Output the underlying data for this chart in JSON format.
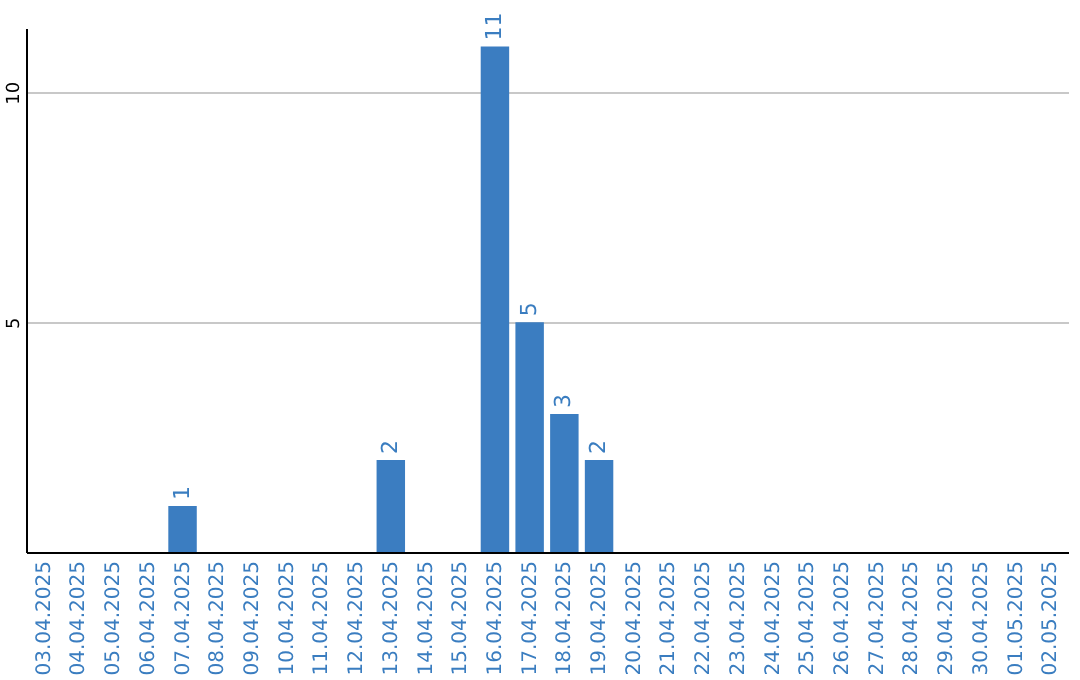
{
  "chart_data": {
    "type": "bar",
    "categories": [
      "03.04.2025",
      "04.04.2025",
      "05.04.2025",
      "06.04.2025",
      "07.04.2025",
      "08.04.2025",
      "09.04.2025",
      "10.04.2025",
      "11.04.2025",
      "12.04.2025",
      "13.04.2025",
      "14.04.2025",
      "15.04.2025",
      "16.04.2025",
      "17.04.2025",
      "18.04.2025",
      "19.04.2025",
      "20.04.2025",
      "21.04.2025",
      "22.04.2025",
      "23.04.2025",
      "24.04.2025",
      "25.04.2025",
      "26.04.2025",
      "27.04.2025",
      "28.04.2025",
      "29.04.2025",
      "30.04.2025",
      "01.05.2025",
      "02.05.2025"
    ],
    "values": [
      0,
      0,
      0,
      0,
      1,
      0,
      0,
      0,
      0,
      0,
      2,
      0,
      0,
      11,
      5,
      3,
      2,
      0,
      0,
      0,
      0,
      0,
      0,
      0,
      0,
      0,
      0,
      0,
      0,
      0
    ],
    "value_labels": [
      null,
      null,
      null,
      null,
      "1",
      null,
      null,
      null,
      null,
      null,
      "2",
      null,
      null,
      "11",
      "5",
      "3",
      "2",
      null,
      null,
      null,
      null,
      null,
      null,
      null,
      null,
      null,
      null,
      null,
      null,
      null
    ],
    "color": "#3b7dc1",
    "ylim": [
      0,
      11.4
    ],
    "yticks": [
      5,
      10
    ],
    "grid": "y"
  }
}
